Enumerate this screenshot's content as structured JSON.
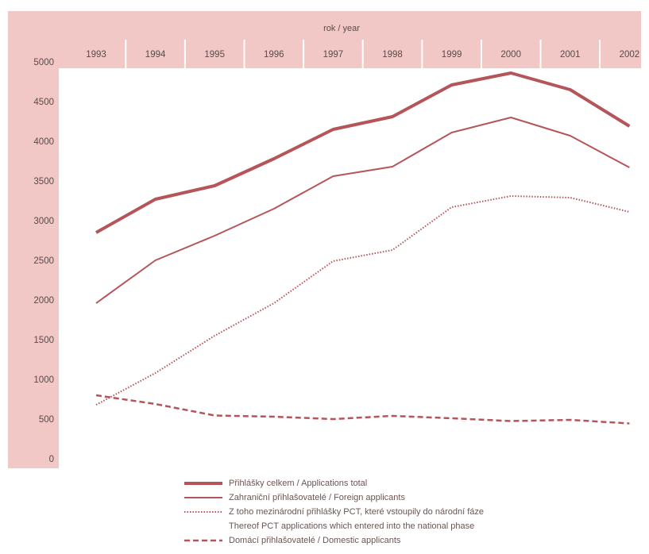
{
  "colors": {
    "band": "#f1c8c6",
    "line": "#b5555a",
    "separator": "#ffffff",
    "text": "#5a4a48"
  },
  "chart_data": {
    "type": "line",
    "xlabel": "rok / year",
    "ylabel": "",
    "title": "",
    "x": [
      1993,
      1994,
      1995,
      1996,
      1997,
      1998,
      1999,
      2000,
      2001,
      2002
    ],
    "x_labels": [
      "1993",
      "1994",
      "1995",
      "1996",
      "1997",
      "1998",
      "1999",
      "2000",
      "2001",
      "2002"
    ],
    "ylim": [
      0,
      5000
    ],
    "yticks": [
      0,
      500,
      1000,
      1500,
      2000,
      2500,
      3000,
      3500,
      4000,
      4500,
      5000
    ],
    "grid": false,
    "legend_position": "bottom",
    "series": [
      {
        "name": "Přihlášky celkem / Applications total",
        "style": "thick",
        "values": [
          2850,
          3270,
          3440,
          3780,
          4150,
          4310,
          4710,
          4860,
          4650,
          4190
        ]
      },
      {
        "name": "Zahraniční přihlašovatelé / Foreign applicants",
        "style": "solid",
        "values": [
          1960,
          2500,
          2810,
          3150,
          3560,
          3680,
          4110,
          4300,
          4070,
          3670
        ]
      },
      {
        "name": "Z toho mezinárodní přihlášky PCT, které vstoupily do národní fáze",
        "name_cont": "Thereof PCT applications which entered into the national phase",
        "style": "dotted",
        "values": [
          680,
          1080,
          1550,
          1960,
          2490,
          2630,
          3170,
          3310,
          3290,
          3110
        ]
      },
      {
        "name": "Domácí přihlašovatelé / Domestic applicants",
        "style": "dashed",
        "values": [
          800,
          690,
          545,
          530,
          500,
          540,
          510,
          475,
          490,
          445
        ]
      }
    ]
  }
}
